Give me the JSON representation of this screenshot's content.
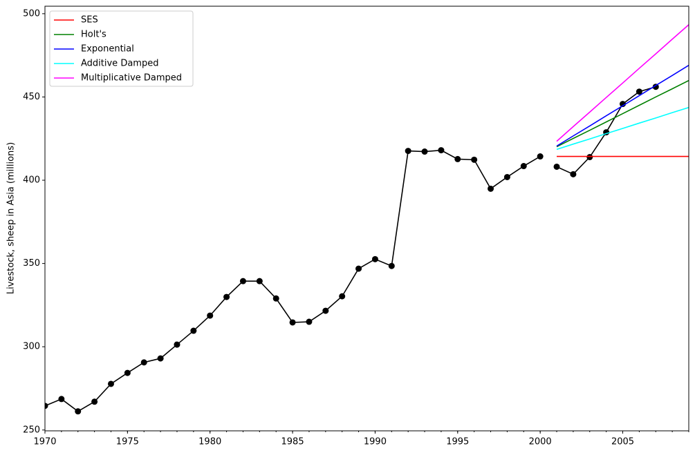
{
  "chart_data": {
    "type": "line",
    "y_label": "Livestock, sheep in Asia (millions)",
    "x": [
      1970,
      1971,
      1972,
      1973,
      1974,
      1975,
      1976,
      1977,
      1978,
      1979,
      1980,
      1981,
      1982,
      1983,
      1984,
      1985,
      1986,
      1987,
      1988,
      1989,
      1990,
      1991,
      1992,
      1993,
      1994,
      1995,
      1996,
      1997,
      1998,
      1999,
      2000,
      2001,
      2002,
      2003,
      2004,
      2005,
      2006,
      2007,
      2008,
      2009
    ],
    "xlim": [
      1970,
      2009
    ],
    "xticks": [
      1970,
      1975,
      1980,
      1985,
      1990,
      1995,
      2000,
      2005
    ],
    "minor_xticks": true,
    "ylim": [
      249.5,
      504.5
    ],
    "yticks": [
      250,
      300,
      350,
      400,
      450,
      500
    ],
    "grid": false,
    "legend": "upper left",
    "series": [
      {
        "color": "#000000",
        "marker": "o",
        "values": [
          264.5,
          268.6,
          261.2,
          267.0,
          277.7,
          284.3,
          290.6,
          293.0,
          301.3,
          309.6,
          318.7,
          329.9,
          339.4,
          339.4,
          329.0,
          314.6,
          315.0,
          321.6,
          330.3,
          346.9,
          352.6,
          348.5,
          417.6,
          417.2,
          418.0,
          412.7,
          412.3,
          394.9,
          401.9,
          408.5,
          414.3,
          null,
          null,
          null,
          null,
          null,
          null,
          null,
          null,
          null
        ]
      },
      {
        "color": "#000000",
        "marker": "o",
        "values": [
          null,
          null,
          null,
          null,
          null,
          null,
          null,
          null,
          null,
          null,
          null,
          null,
          null,
          null,
          null,
          null,
          null,
          null,
          null,
          null,
          null,
          null,
          null,
          null,
          null,
          null,
          null,
          null,
          null,
          null,
          null,
          408.1,
          403.6,
          413.9,
          428.8,
          445.8,
          453.2,
          456.1,
          null,
          null
        ]
      },
      {
        "name": "SES",
        "color": "#ff0000",
        "values": [
          null,
          null,
          null,
          null,
          null,
          null,
          null,
          null,
          null,
          null,
          null,
          null,
          null,
          null,
          null,
          null,
          null,
          null,
          null,
          null,
          null,
          null,
          null,
          null,
          null,
          null,
          null,
          null,
          null,
          null,
          null,
          414.3,
          414.3,
          414.3,
          414.3,
          414.3,
          414.3,
          414.3,
          414.3,
          414.3
        ]
      },
      {
        "name": "Holt's",
        "color": "#008000",
        "values": [
          null,
          null,
          null,
          null,
          null,
          null,
          null,
          null,
          null,
          null,
          null,
          null,
          null,
          null,
          null,
          null,
          null,
          null,
          null,
          null,
          null,
          null,
          null,
          null,
          null,
          null,
          null,
          null,
          null,
          null,
          null,
          420.1,
          425.1,
          430.0,
          435.0,
          440.0,
          445.0,
          450.0,
          454.9,
          459.9
        ]
      },
      {
        "name": "Exponential",
        "color": "#0000ff",
        "values": [
          null,
          null,
          null,
          null,
          null,
          null,
          null,
          null,
          null,
          null,
          null,
          null,
          null,
          null,
          null,
          null,
          null,
          null,
          null,
          null,
          null,
          null,
          null,
          null,
          null,
          null,
          null,
          null,
          null,
          null,
          null,
          420.5,
          426.6,
          432.6,
          438.7,
          444.7,
          450.8,
          456.9,
          462.9,
          469.0
        ]
      },
      {
        "name": "Additive Damped",
        "color": "#00ffff",
        "values": [
          null,
          null,
          null,
          null,
          null,
          null,
          null,
          null,
          null,
          null,
          null,
          null,
          null,
          null,
          null,
          null,
          null,
          null,
          null,
          null,
          null,
          null,
          null,
          null,
          null,
          null,
          null,
          null,
          null,
          null,
          null,
          418.5,
          421.7,
          424.8,
          428.0,
          431.1,
          434.3,
          437.4,
          440.6,
          443.7
        ]
      },
      {
        "name": "Multiplicative Damped",
        "color": "#ff00ff",
        "values": [
          null,
          null,
          null,
          null,
          null,
          null,
          null,
          null,
          null,
          null,
          null,
          null,
          null,
          null,
          null,
          null,
          null,
          null,
          null,
          null,
          null,
          null,
          null,
          null,
          null,
          null,
          null,
          null,
          null,
          null,
          null,
          423.4,
          432.2,
          440.9,
          449.7,
          458.4,
          467.2,
          475.9,
          484.7,
          493.4
        ]
      }
    ]
  }
}
